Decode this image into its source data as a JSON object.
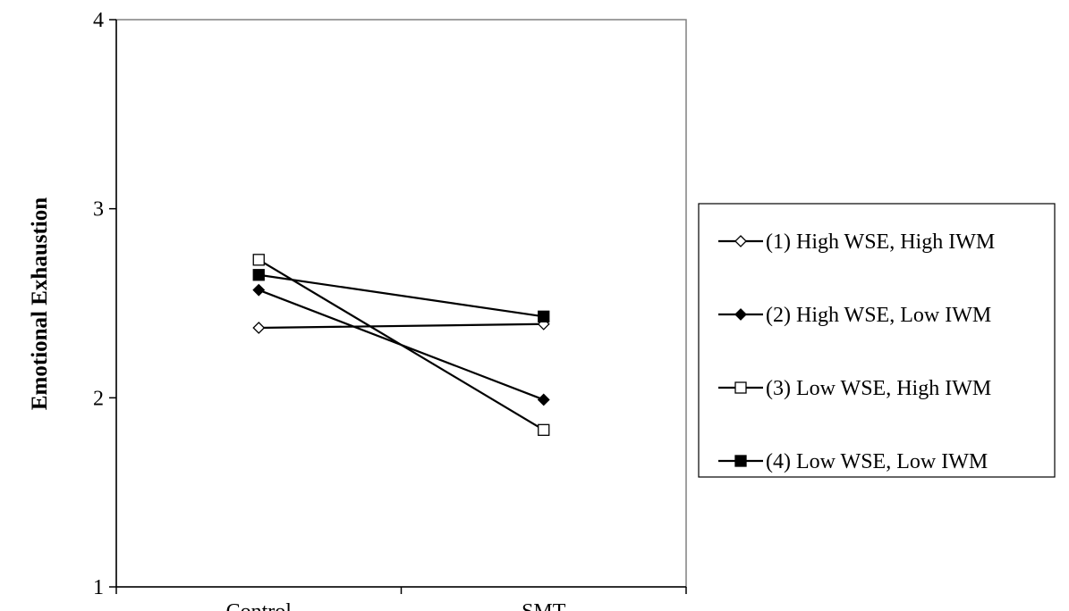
{
  "chart_data": {
    "type": "line",
    "title": "",
    "xlabel": "",
    "ylabel": "Emotional Exhaustion",
    "categories": [
      "Control",
      "SMT"
    ],
    "ylim": [
      1,
      4
    ],
    "yticks": [
      "1",
      "2",
      "3",
      "4"
    ],
    "grid": false,
    "legend_position": "right",
    "series": [
      {
        "name": "(1) High WSE, High IWM",
        "values": [
          2.37,
          2.39
        ],
        "marker": "diamond-open"
      },
      {
        "name": "(2) High WSE, Low IWM",
        "values": [
          2.57,
          1.99
        ],
        "marker": "diamond-filled"
      },
      {
        "name": "(3) Low WSE, High IWM",
        "values": [
          2.73,
          1.83
        ],
        "marker": "square-open"
      },
      {
        "name": "(4) Low WSE, Low IWM",
        "values": [
          2.65,
          2.43
        ],
        "marker": "square-filled"
      }
    ]
  }
}
